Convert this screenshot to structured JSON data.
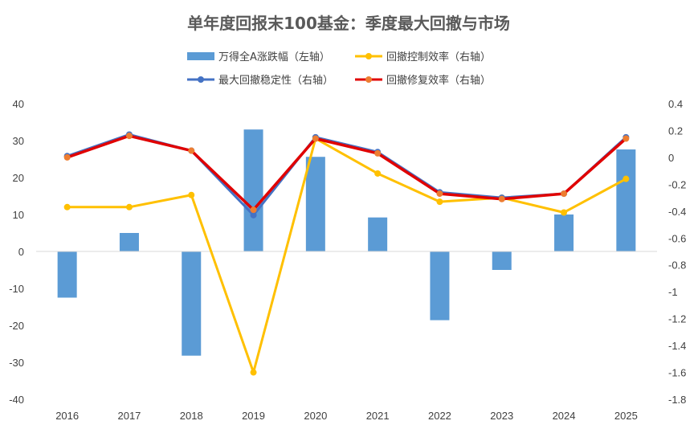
{
  "chart_data": {
    "type": "bar+line",
    "title": "单年度回报末100基金：季度最大回撤与市场",
    "categories": [
      "2016",
      "2017",
      "2018",
      "2019",
      "2020",
      "2021",
      "2022",
      "2023",
      "2024",
      "2025"
    ],
    "y_left": {
      "min": -40,
      "max": 40,
      "step": 10,
      "ticks": [
        "40",
        "30",
        "20",
        "10",
        "0",
        "-10",
        "-20",
        "-30",
        "-40"
      ]
    },
    "y_right": {
      "min": -1.8,
      "max": 0.4,
      "step": 0.2,
      "ticks": [
        "0.4",
        "0.2",
        "0",
        "-0.2",
        "-0.4",
        "-0.6",
        "-0.8",
        "-1",
        "-1.2",
        "-1.4",
        "-1.6",
        "-1.8"
      ]
    },
    "series": [
      {
        "name": "万得全A涨跌幅（左轴）",
        "kind": "bar",
        "axis": "left",
        "color": "#5b9bd5",
        "values": [
          -12.5,
          5.0,
          -28.2,
          33.0,
          25.6,
          9.2,
          -18.6,
          -5.0,
          10.0,
          27.6
        ]
      },
      {
        "name": "回撤控制效率（右轴）",
        "kind": "line",
        "axis": "right",
        "color": "#ffc000",
        "values": [
          -0.37,
          -0.37,
          -0.28,
          -1.6,
          0.14,
          -0.12,
          -0.33,
          -0.3,
          -0.41,
          -0.16
        ]
      },
      {
        "name": "最大回撤稳定性（右轴）",
        "kind": "line",
        "axis": "right",
        "color": "#4472c4",
        "values": [
          0.01,
          0.17,
          0.05,
          -0.43,
          0.15,
          0.04,
          -0.26,
          -0.3,
          -0.27,
          0.15
        ]
      },
      {
        "name": "回撤修复效率（右轴）",
        "kind": "line",
        "axis": "right",
        "color": "#e00000",
        "marker_color": "#ed7d31",
        "values": [
          0.0,
          0.16,
          0.05,
          -0.39,
          0.14,
          0.03,
          -0.27,
          -0.31,
          -0.27,
          0.14
        ]
      }
    ],
    "legend": "top",
    "grid": false
  }
}
